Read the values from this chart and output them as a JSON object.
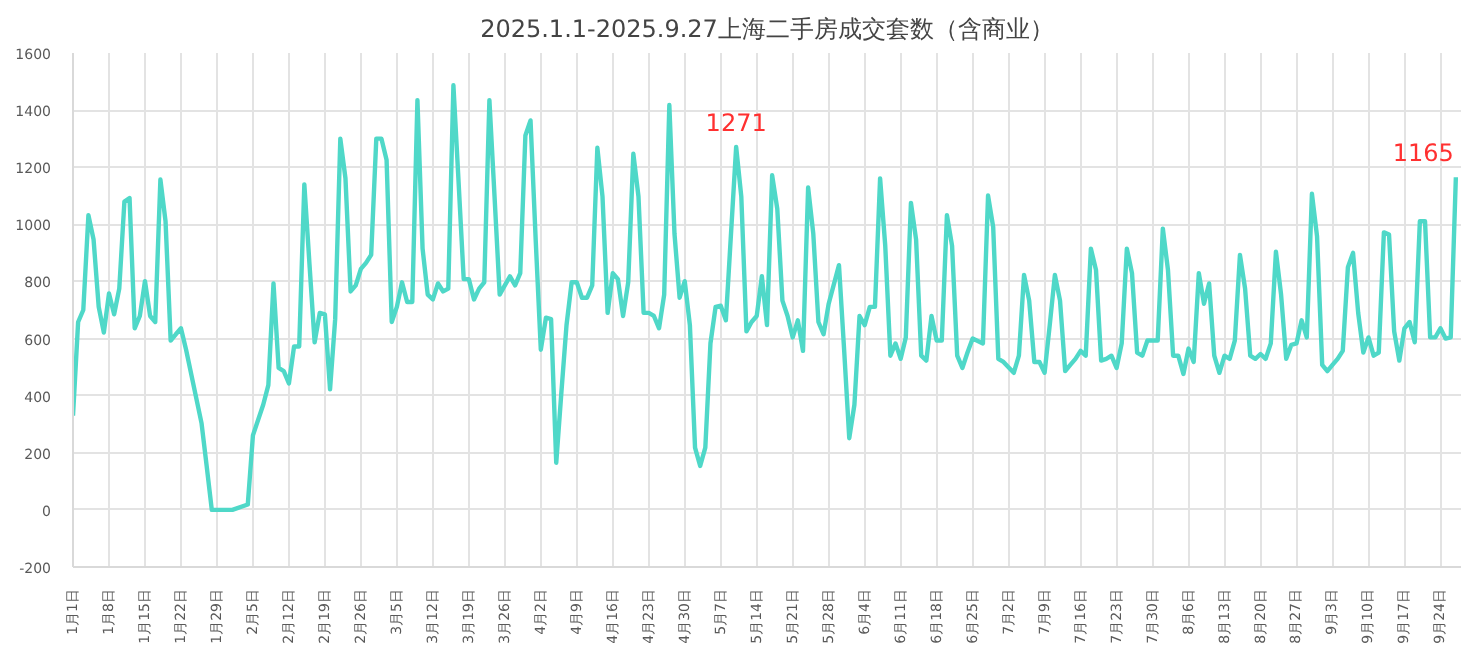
{
  "chart_data": {
    "type": "line",
    "title": "2025.1.1-2025.9.27上海二手房成交套数（含商业）",
    "x": [
      "2025-01-01",
      "2025-01-02",
      "2025-01-03",
      "2025-01-04",
      "2025-01-05",
      "2025-01-06",
      "2025-01-07",
      "2025-01-08",
      "2025-01-09",
      "2025-01-10",
      "2025-01-11",
      "2025-01-12",
      "2025-01-13",
      "2025-01-14",
      "2025-01-15",
      "2025-01-16",
      "2025-01-17",
      "2025-01-18",
      "2025-01-19",
      "2025-01-20",
      "2025-01-21",
      "2025-01-22",
      "2025-01-23",
      "2025-01-26",
      "2025-01-27",
      "2025-01-28",
      "2025-01-30",
      "2025-02-01",
      "2025-02-04",
      "2025-02-05",
      "2025-02-07",
      "2025-02-08",
      "2025-02-09",
      "2025-02-10",
      "2025-02-11",
      "2025-02-12",
      "2025-02-13",
      "2025-02-14",
      "2025-02-15",
      "2025-02-16",
      "2025-02-17",
      "2025-02-18",
      "2025-02-19",
      "2025-02-20",
      "2025-02-21",
      "2025-02-22",
      "2025-02-23",
      "2025-02-24",
      "2025-02-25",
      "2025-02-26",
      "2025-02-27",
      "2025-02-28",
      "2025-03-01",
      "2025-03-02",
      "2025-03-03",
      "2025-03-04",
      "2025-03-05",
      "2025-03-06",
      "2025-03-07",
      "2025-03-08",
      "2025-03-09",
      "2025-03-10",
      "2025-03-11",
      "2025-03-12",
      "2025-03-13",
      "2025-03-14",
      "2025-03-15",
      "2025-03-16",
      "2025-03-17",
      "2025-03-18",
      "2025-03-19",
      "2025-03-20",
      "2025-03-21",
      "2025-03-22",
      "2025-03-23",
      "2025-03-24",
      "2025-03-25",
      "2025-03-26",
      "2025-03-27",
      "2025-03-28",
      "2025-03-29",
      "2025-03-30",
      "2025-03-31",
      "2025-04-01",
      "2025-04-02",
      "2025-04-03",
      "2025-04-04",
      "2025-04-05",
      "2025-04-06",
      "2025-04-07",
      "2025-04-08",
      "2025-04-09",
      "2025-04-10",
      "2025-04-11",
      "2025-04-12",
      "2025-04-13",
      "2025-04-14",
      "2025-04-15",
      "2025-04-16",
      "2025-04-17",
      "2025-04-18",
      "2025-04-19",
      "2025-04-20",
      "2025-04-21",
      "2025-04-22",
      "2025-04-23",
      "2025-04-24",
      "2025-04-25",
      "2025-04-26",
      "2025-04-27",
      "2025-04-28",
      "2025-04-29",
      "2025-04-30",
      "2025-05-01",
      "2025-05-02",
      "2025-05-03",
      "2025-05-04",
      "2025-05-05",
      "2025-05-06",
      "2025-05-07",
      "2025-05-08",
      "2025-05-10",
      "2025-05-11",
      "2025-05-12",
      "2025-05-13",
      "2025-05-14",
      "2025-05-15",
      "2025-05-16",
      "2025-05-17",
      "2025-05-18",
      "2025-05-19",
      "2025-05-20",
      "2025-05-21",
      "2025-05-22",
      "2025-05-23",
      "2025-05-24",
      "2025-05-25",
      "2025-05-26",
      "2025-05-27",
      "2025-05-28",
      "2025-05-30",
      "2025-05-31",
      "2025-06-01",
      "2025-06-02",
      "2025-06-03",
      "2025-06-04",
      "2025-06-05",
      "2025-06-06",
      "2025-06-07",
      "2025-06-08",
      "2025-06-09",
      "2025-06-10",
      "2025-06-11",
      "2025-06-12",
      "2025-06-13",
      "2025-06-14",
      "2025-06-15",
      "2025-06-16",
      "2025-06-17",
      "2025-06-18",
      "2025-06-19",
      "2025-06-20",
      "2025-06-21",
      "2025-06-22",
      "2025-06-23",
      "2025-06-24",
      "2025-06-25",
      "2025-06-27",
      "2025-06-28",
      "2025-06-29",
      "2025-06-30",
      "2025-07-01",
      "2025-07-03",
      "2025-07-04",
      "2025-07-05",
      "2025-07-06",
      "2025-07-07",
      "2025-07-08",
      "2025-07-09",
      "2025-07-10",
      "2025-07-11",
      "2025-07-12",
      "2025-07-13",
      "2025-07-14",
      "2025-07-15",
      "2025-07-16",
      "2025-07-17",
      "2025-07-18",
      "2025-07-19",
      "2025-07-20",
      "2025-07-21",
      "2025-07-22",
      "2025-07-23",
      "2025-07-24",
      "2025-07-25",
      "2025-07-26",
      "2025-07-27",
      "2025-07-28",
      "2025-07-29",
      "2025-07-30",
      "2025-07-31",
      "2025-08-01",
      "2025-08-02",
      "2025-08-03",
      "2025-08-04",
      "2025-08-05",
      "2025-08-06",
      "2025-08-07",
      "2025-08-08",
      "2025-08-09",
      "2025-08-10",
      "2025-08-11",
      "2025-08-12",
      "2025-08-13",
      "2025-08-14",
      "2025-08-15",
      "2025-08-16",
      "2025-08-17",
      "2025-08-18",
      "2025-08-19",
      "2025-08-20",
      "2025-08-21",
      "2025-08-22",
      "2025-08-23",
      "2025-08-24",
      "2025-08-25",
      "2025-08-26",
      "2025-08-27",
      "2025-08-28",
      "2025-08-29",
      "2025-08-30",
      "2025-08-31",
      "2025-09-01",
      "2025-09-02",
      "2025-09-03",
      "2025-09-04",
      "2025-09-05",
      "2025-09-06",
      "2025-09-07",
      "2025-09-08",
      "2025-09-09",
      "2025-09-10",
      "2025-09-11",
      "2025-09-12",
      "2025-09-13",
      "2025-09-14",
      "2025-09-15",
      "2025-09-16",
      "2025-09-17",
      "2025-09-18",
      "2025-09-19",
      "2025-09-20",
      "2025-09-21",
      "2025-09-22",
      "2025-09-23",
      "2025-09-24",
      "2025-09-25",
      "2025-09-26",
      "2025-09-27"
    ],
    "series": [
      {
        "color": "#4fd8c8",
        "values": [
          330,
          658,
          700,
          1032,
          947,
          711,
          621,
          758,
          685,
          775,
          1080,
          1092,
          636,
          679,
          801,
          679,
          658,
          1157,
          1011,
          593,
          615,
          636,
          561,
          304,
          154,
          0,
          0,
          0,
          19,
          261,
          368,
          437,
          793,
          497,
          486,
          443,
          572,
          572,
          1140,
          861,
          587,
          690,
          685,
          422,
          668,
          1300,
          1161,
          765,
          786,
          844,
          865,
          893,
          1300,
          1300,
          1225,
          658,
          711,
          797,
          728,
          728,
          1435,
          915,
          754,
          737,
          793,
          765,
          775,
          1487,
          1150,
          808,
          808,
          737,
          775,
          797,
          1435,
          1097,
          754,
          786,
          818,
          786,
          829,
          1311,
          1364,
          947,
          561,
          673,
          668,
          165,
          411,
          647,
          797,
          797,
          743,
          743,
          786,
          1268,
          1097,
          690,
          829,
          808,
          679,
          797,
          1247,
          1097,
          690,
          690,
          679,
          636,
          754,
          1418,
          968,
          743,
          801,
          647,
          218,
          154,
          218,
          583,
          711,
          715,
          664,
          1271,
          1097,
          625,
          658,
          679,
          818,
          647,
          1172,
          1054,
          733,
          679,
          604,
          664,
          557,
          1129,
          968,
          658,
          615,
          722,
          857,
          561,
          251,
          368,
          679,
          647,
          711,
          711,
          1161,
          925,
          540,
          583,
          529,
          604,
          1075,
          947,
          540,
          523,
          679,
          593,
          593,
          1032,
          925,
          540,
          497,
          551,
          600,
          583,
          1101,
          990,
          529,
          518,
          480,
          540,
          823,
          733,
          518,
          518,
          480,
          647,
          823,
          733,
          486,
          508,
          529,
          557,
          540,
          915,
          840,
          523,
          529,
          540,
          497,
          583,
          915,
          829,
          551,
          540,
          593,
          593,
          593,
          985,
          840,
          540,
          540,
          476,
          565,
          518,
          829,
          722,
          793,
          540,
          480,
          540,
          529,
          593,
          893,
          775,
          540,
          529,
          546,
          529,
          583,
          904,
          754,
          529,
          578,
          583,
          664,
          604,
          1107,
          957,
          508,
          486,
          508,
          529,
          557,
          850,
          900,
          690,
          551,
          604,
          540,
          551,
          972,
          964,
          625,
          523,
          636,
          658,
          587,
          1011,
          1011,
          604,
          604,
          636,
          600,
          604,
          1165
        ]
      }
    ],
    "annotations": [
      {
        "text": "1271",
        "x": "2025-05-10",
        "y": 1271
      },
      {
        "text": "1165",
        "x": "2025-09-27",
        "y": 1165
      }
    ],
    "xlim": [
      "2025-01-01",
      "2025-09-28"
    ],
    "xticks": [
      {
        "value": "2025-01-01",
        "label": "1月1日"
      },
      {
        "value": "2025-01-08",
        "label": "1月8日"
      },
      {
        "value": "2025-01-15",
        "label": "1月15日"
      },
      {
        "value": "2025-01-22",
        "label": "1月22日"
      },
      {
        "value": "2025-01-29",
        "label": "1月29日"
      },
      {
        "value": "2025-02-05",
        "label": "2月5日"
      },
      {
        "value": "2025-02-12",
        "label": "2月12日"
      },
      {
        "value": "2025-02-19",
        "label": "2月19日"
      },
      {
        "value": "2025-02-26",
        "label": "2月26日"
      },
      {
        "value": "2025-03-05",
        "label": "3月5日"
      },
      {
        "value": "2025-03-12",
        "label": "3月12日"
      },
      {
        "value": "2025-03-19",
        "label": "3月19日"
      },
      {
        "value": "2025-03-26",
        "label": "3月26日"
      },
      {
        "value": "2025-04-02",
        "label": "4月2日"
      },
      {
        "value": "2025-04-09",
        "label": "4月9日"
      },
      {
        "value": "2025-04-16",
        "label": "4月16日"
      },
      {
        "value": "2025-04-23",
        "label": "4月23日"
      },
      {
        "value": "2025-04-30",
        "label": "4月30日"
      },
      {
        "value": "2025-05-07",
        "label": "5月7日"
      },
      {
        "value": "2025-05-14",
        "label": "5月14日"
      },
      {
        "value": "2025-05-21",
        "label": "5月21日"
      },
      {
        "value": "2025-05-28",
        "label": "5月28日"
      },
      {
        "value": "2025-06-04",
        "label": "6月4日"
      },
      {
        "value": "2025-06-11",
        "label": "6月11日"
      },
      {
        "value": "2025-06-18",
        "label": "6月18日"
      },
      {
        "value": "2025-06-25",
        "label": "6月25日"
      },
      {
        "value": "2025-07-02",
        "label": "7月2日"
      },
      {
        "value": "2025-07-09",
        "label": "7月9日"
      },
      {
        "value": "2025-07-16",
        "label": "7月16日"
      },
      {
        "value": "2025-07-23",
        "label": "7月23日"
      },
      {
        "value": "2025-07-30",
        "label": "7月30日"
      },
      {
        "value": "2025-08-06",
        "label": "8月6日"
      },
      {
        "value": "2025-08-13",
        "label": "8月13日"
      },
      {
        "value": "2025-08-20",
        "label": "8月20日"
      },
      {
        "value": "2025-08-27",
        "label": "8月27日"
      },
      {
        "value": "2025-09-03",
        "label": "9月3日"
      },
      {
        "value": "2025-09-10",
        "label": "9月10日"
      },
      {
        "value": "2025-09-17",
        "label": "9月17日"
      },
      {
        "value": "2025-09-24",
        "label": "9月24日"
      }
    ],
    "ylim": [
      -200,
      1600
    ],
    "yticks": [
      -200,
      0,
      200,
      400,
      600,
      800,
      1000,
      1200,
      1400,
      1600
    ],
    "grid": true,
    "line_style": "solid"
  }
}
